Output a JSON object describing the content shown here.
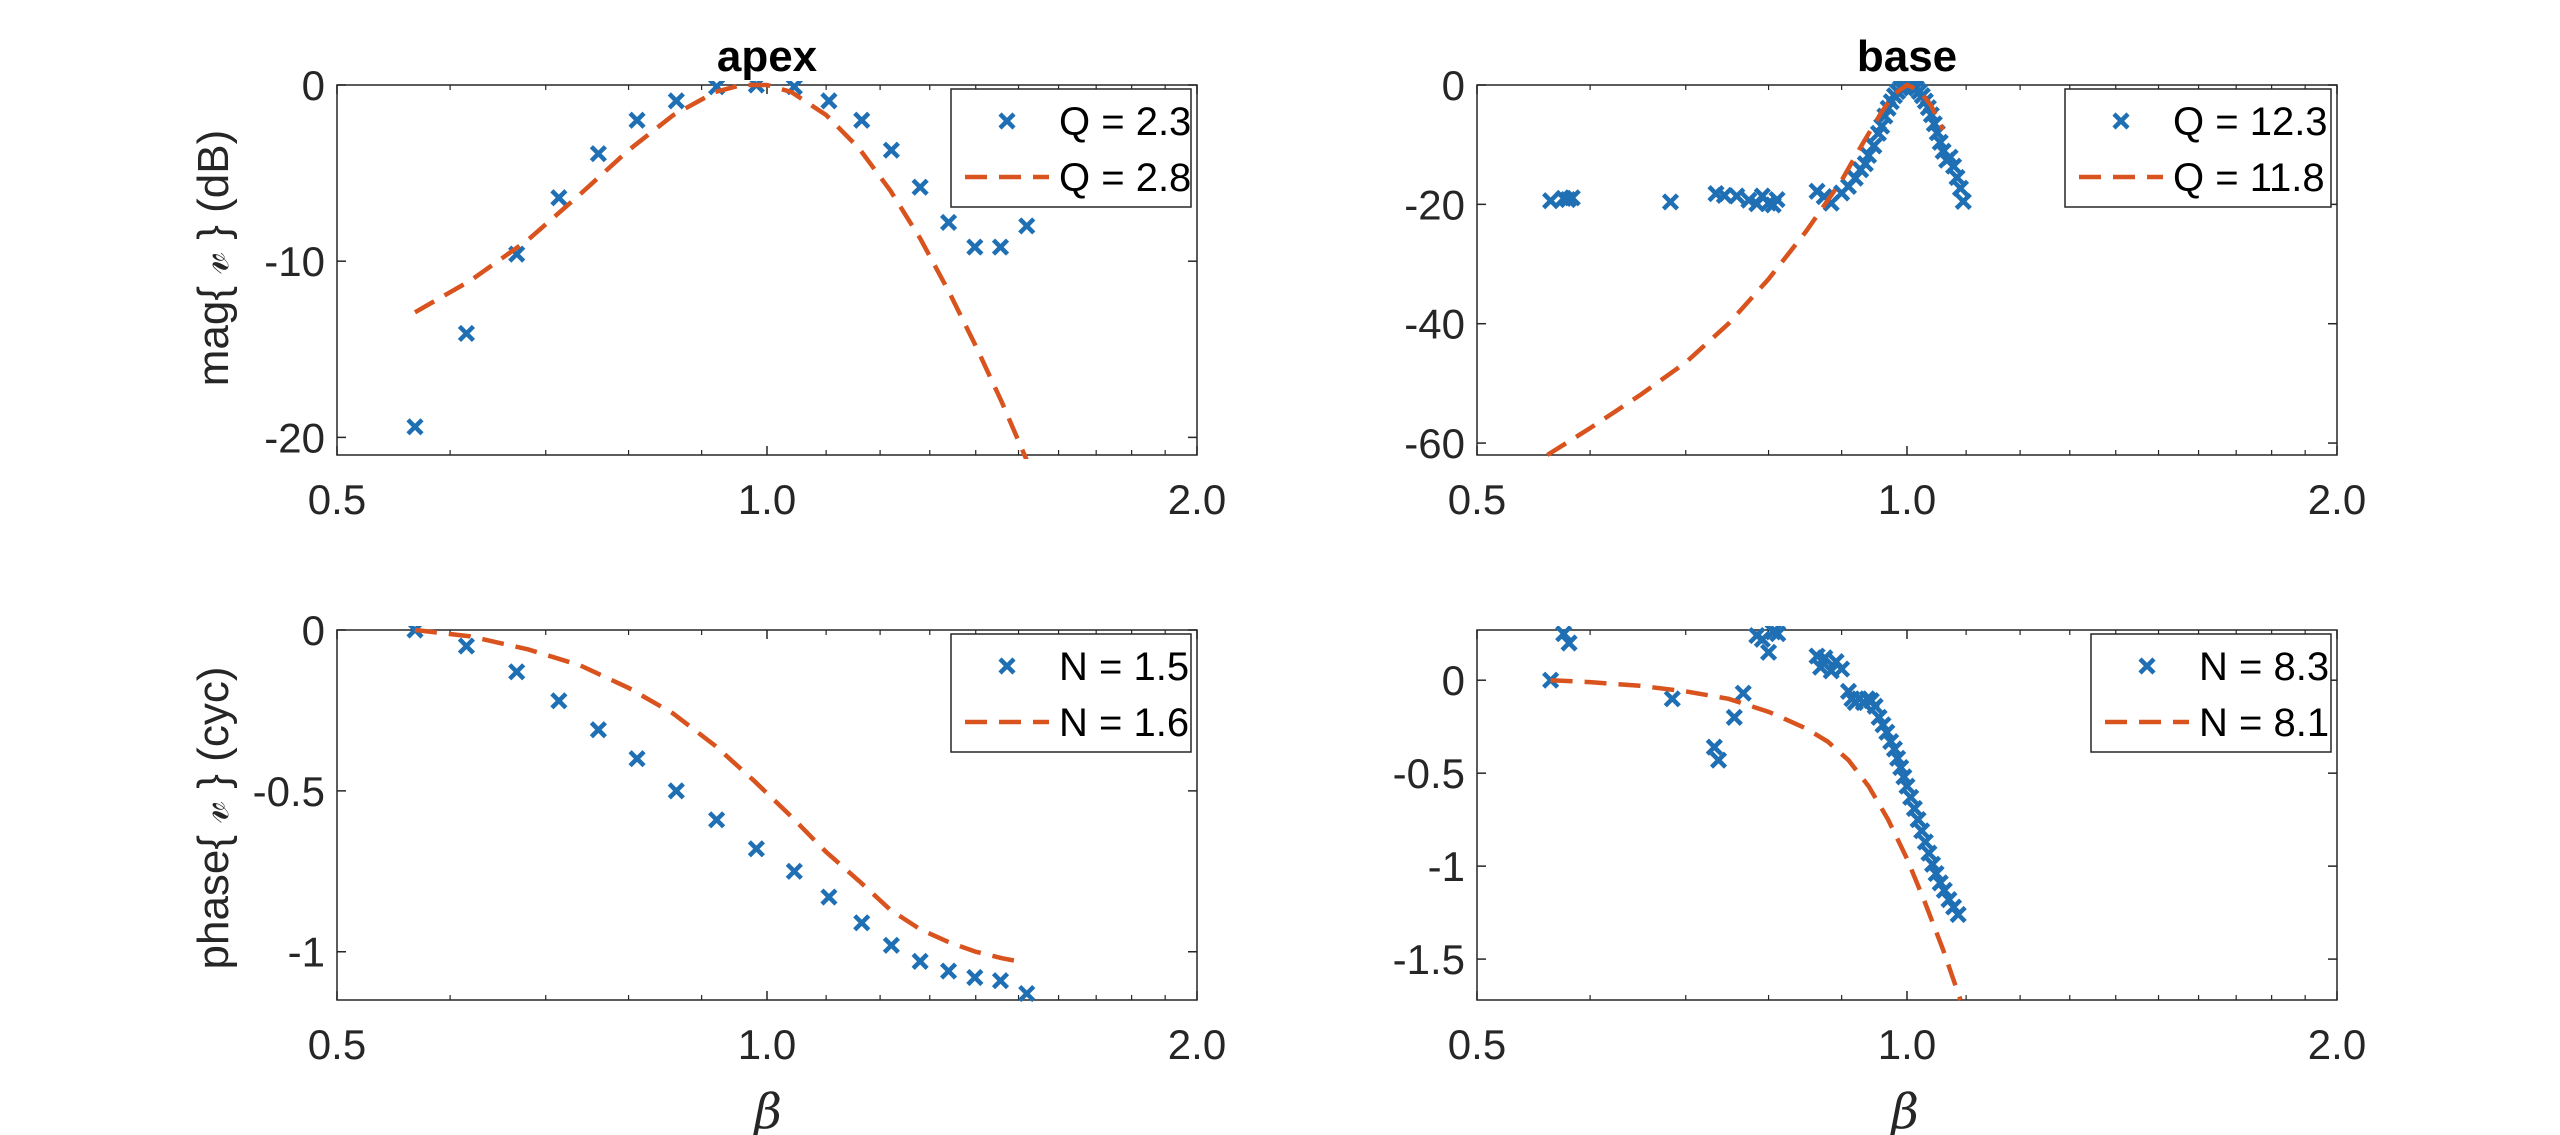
{
  "colors": {
    "marker": "#1f6fb4",
    "model": "#d9531e",
    "axis": "#262626",
    "background": "#ffffff"
  },
  "figure": {
    "xlabel": "β",
    "ylabel_top": "mag{ 𝓋 } (dB)",
    "ylabel_bottom": "phase{ 𝓋 }  (cyc)"
  },
  "chart_data": [
    {
      "id": "apex-mag",
      "type": "scatter",
      "title": "apex",
      "xscale": "log",
      "xlim": [
        0.5,
        2.0
      ],
      "ylim": [
        -21,
        0
      ],
      "xticks": [
        0.5,
        1.0,
        2.0
      ],
      "xticklabels": [
        "0.5",
        "1.0",
        "2.0"
      ],
      "yticks": [
        0,
        -10,
        -20
      ],
      "yticklabels": [
        "0",
        "-10",
        "-20"
      ],
      "legend_position": "top-right",
      "series": [
        {
          "name": "Q = 2.3",
          "kind": "markers",
          "points": [
            [
              0.567,
              -19.4
            ],
            [
              0.616,
              -14.1
            ],
            [
              0.668,
              -9.6
            ],
            [
              0.715,
              -6.4
            ],
            [
              0.762,
              -3.9
            ],
            [
              0.811,
              -2.0
            ],
            [
              0.864,
              -0.9
            ],
            [
              0.922,
              -0.1
            ],
            [
              0.983,
              0.0
            ],
            [
              1.045,
              -0.1
            ],
            [
              1.105,
              -0.9
            ],
            [
              1.165,
              -2.0
            ],
            [
              1.222,
              -3.7
            ],
            [
              1.28,
              -5.8
            ],
            [
              1.34,
              -7.8
            ],
            [
              1.398,
              -9.2
            ],
            [
              1.457,
              -9.2
            ],
            [
              1.52,
              -8.0
            ]
          ]
        },
        {
          "name": "Q = 2.8",
          "kind": "dashed-line",
          "points": [
            [
              0.567,
              -12.9
            ],
            [
              0.62,
              -11.1
            ],
            [
              0.68,
              -8.8
            ],
            [
              0.74,
              -6.2
            ],
            [
              0.8,
              -3.7
            ],
            [
              0.86,
              -1.7
            ],
            [
              0.92,
              -0.4
            ],
            [
              0.96,
              0.0
            ],
            [
              1.0,
              0.0
            ],
            [
              1.04,
              -0.4
            ],
            [
              1.1,
              -1.7
            ],
            [
              1.16,
              -3.6
            ],
            [
              1.22,
              -6.0
            ],
            [
              1.28,
              -8.7
            ],
            [
              1.34,
              -11.7
            ],
            [
              1.4,
              -14.8
            ],
            [
              1.46,
              -18.0
            ],
            [
              1.52,
              -21.3
            ]
          ]
        }
      ]
    },
    {
      "id": "base-mag",
      "type": "scatter",
      "title": "base",
      "xscale": "log",
      "xlim": [
        0.5,
        2.0
      ],
      "ylim": [
        -62,
        0
      ],
      "xticks": [
        0.5,
        1.0,
        2.0
      ],
      "xticklabels": [
        "0.5",
        "1.0",
        "2.0"
      ],
      "yticks": [
        0,
        -20,
        -40,
        -60
      ],
      "yticklabels": [
        "0",
        "-20",
        "-40",
        "-60"
      ],
      "legend_position": "top-right",
      "series": [
        {
          "name": "Q = 12.3",
          "kind": "markers",
          "points": [
            [
              0.563,
              -19.4
            ],
            [
              0.575,
              -19.0
            ],
            [
              0.579,
              -19.2
            ],
            [
              0.583,
              -18.9
            ],
            [
              0.683,
              -19.6
            ],
            [
              0.735,
              -18.2
            ],
            [
              0.745,
              -18.5
            ],
            [
              0.76,
              -18.6
            ],
            [
              0.775,
              -19.3
            ],
            [
              0.785,
              -19.9
            ],
            [
              0.792,
              -18.6
            ],
            [
              0.8,
              -19.8
            ],
            [
              0.806,
              -20.1
            ],
            [
              0.811,
              -19.2
            ],
            [
              0.865,
              -17.8
            ],
            [
              0.875,
              -18.7
            ],
            [
              0.885,
              -19.8
            ],
            [
              0.9,
              -18.1
            ],
            [
              0.91,
              -17.0
            ],
            [
              0.92,
              -15.6
            ],
            [
              0.928,
              -14.2
            ],
            [
              0.935,
              -13.2
            ],
            [
              0.94,
              -11.8
            ],
            [
              0.948,
              -10.2
            ],
            [
              0.955,
              -8.1
            ],
            [
              0.96,
              -6.9
            ],
            [
              0.965,
              -5.2
            ],
            [
              0.97,
              -3.9
            ],
            [
              0.975,
              -2.8
            ],
            [
              0.98,
              -1.8
            ],
            [
              0.985,
              -1.1
            ],
            [
              0.99,
              -0.5
            ],
            [
              0.995,
              -0.2
            ],
            [
              1.0,
              0.0
            ],
            [
              1.005,
              0.0
            ],
            [
              1.01,
              -0.2
            ],
            [
              1.015,
              -0.5
            ],
            [
              1.02,
              -1.1
            ],
            [
              1.025,
              -1.8
            ],
            [
              1.03,
              -2.7
            ],
            [
              1.035,
              -3.8
            ],
            [
              1.04,
              -5.0
            ],
            [
              1.045,
              -6.5
            ],
            [
              1.05,
              -8.0
            ],
            [
              1.055,
              -9.6
            ],
            [
              1.06,
              -11.1
            ],
            [
              1.066,
              -12.6
            ],
            [
              1.072,
              -12.1
            ],
            [
              1.078,
              -13.6
            ],
            [
              1.084,
              -15.5
            ],
            [
              1.09,
              -17.3
            ],
            [
              1.095,
              -19.5
            ]
          ]
        },
        {
          "name": "Q = 11.8",
          "kind": "dashed-line",
          "points": [
            [
              0.56,
              -62.0
            ],
            [
              0.6,
              -57.5
            ],
            [
              0.65,
              -52.0
            ],
            [
              0.7,
              -46.5
            ],
            [
              0.75,
              -40.0
            ],
            [
              0.8,
              -32.5
            ],
            [
              0.85,
              -24.5
            ],
            [
              0.9,
              -16.0
            ],
            [
              0.93,
              -10.0
            ],
            [
              0.96,
              -4.5
            ],
            [
              0.98,
              -1.5
            ],
            [
              1.0,
              0.0
            ],
            [
              1.02,
              -0.9
            ],
            [
              1.04,
              -3.5
            ],
            [
              1.06,
              -7.5
            ]
          ]
        }
      ]
    },
    {
      "id": "apex-phase",
      "type": "scatter",
      "xscale": "log",
      "xlim": [
        0.5,
        2.0
      ],
      "ylim": [
        -1.15,
        0
      ],
      "xticks": [
        0.5,
        1.0,
        2.0
      ],
      "xticklabels": [
        "0.5",
        "1.0",
        "2.0"
      ],
      "yticks": [
        0,
        -0.5,
        -1
      ],
      "yticklabels": [
        "0",
        "-0.5",
        "-1"
      ],
      "legend_position": "top-right",
      "series": [
        {
          "name": "N = 1.5",
          "kind": "markers",
          "points": [
            [
              0.567,
              0.0
            ],
            [
              0.616,
              -0.05
            ],
            [
              0.668,
              -0.13
            ],
            [
              0.715,
              -0.22
            ],
            [
              0.762,
              -0.31
            ],
            [
              0.811,
              -0.4
            ],
            [
              0.864,
              -0.5
            ],
            [
              0.922,
              -0.59
            ],
            [
              0.983,
              -0.68
            ],
            [
              1.045,
              -0.75
            ],
            [
              1.105,
              -0.83
            ],
            [
              1.165,
              -0.91
            ],
            [
              1.222,
              -0.98
            ],
            [
              1.28,
              -1.03
            ],
            [
              1.34,
              -1.06
            ],
            [
              1.398,
              -1.08
            ],
            [
              1.457,
              -1.09
            ],
            [
              1.52,
              -1.13
            ]
          ]
        },
        {
          "name": "N = 1.6",
          "kind": "dashed-line",
          "points": [
            [
              0.567,
              0.0
            ],
            [
              0.62,
              -0.02
            ],
            [
              0.68,
              -0.06
            ],
            [
              0.74,
              -0.11
            ],
            [
              0.8,
              -0.18
            ],
            [
              0.86,
              -0.26
            ],
            [
              0.92,
              -0.36
            ],
            [
              0.98,
              -0.47
            ],
            [
              1.04,
              -0.58
            ],
            [
              1.1,
              -0.69
            ],
            [
              1.16,
              -0.78
            ],
            [
              1.22,
              -0.87
            ],
            [
              1.28,
              -0.93
            ],
            [
              1.34,
              -0.97
            ],
            [
              1.4,
              -1.0
            ],
            [
              1.46,
              -1.02
            ],
            [
              1.5,
              -1.03
            ]
          ]
        }
      ]
    },
    {
      "id": "base-phase",
      "type": "scatter",
      "xscale": "log",
      "xlim": [
        0.5,
        2.0
      ],
      "ylim": [
        -1.72,
        0.27
      ],
      "xticks": [
        0.5,
        1.0,
        2.0
      ],
      "xticklabels": [
        "0.5",
        "1.0",
        "2.0"
      ],
      "yticks": [
        0,
        -0.5,
        -1,
        -1.5
      ],
      "yticklabels": [
        "0",
        "-0.5",
        "-1",
        "-1.5"
      ],
      "legend_position": "top-right",
      "series": [
        {
          "name": "N = 8.3",
          "kind": "markers",
          "points": [
            [
              0.563,
              0.0
            ],
            [
              0.575,
              0.25
            ],
            [
              0.58,
              0.2
            ],
            [
              0.685,
              -0.1
            ],
            [
              0.733,
              -0.36
            ],
            [
              0.738,
              -0.43
            ],
            [
              0.757,
              -0.2
            ],
            [
              0.768,
              -0.07
            ],
            [
              0.785,
              0.24
            ],
            [
              0.792,
              0.22
            ],
            [
              0.8,
              0.15
            ],
            [
              0.806,
              0.26
            ],
            [
              0.812,
              0.25
            ],
            [
              0.865,
              0.13
            ],
            [
              0.87,
              0.07
            ],
            [
              0.876,
              0.12
            ],
            [
              0.885,
              0.05
            ],
            [
              0.892,
              0.1
            ],
            [
              0.9,
              0.06
            ],
            [
              0.91,
              -0.06
            ],
            [
              0.915,
              -0.1
            ],
            [
              0.92,
              -0.12
            ],
            [
              0.926,
              -0.1
            ],
            [
              0.932,
              -0.12
            ],
            [
              0.938,
              -0.1
            ],
            [
              0.944,
              -0.11
            ],
            [
              0.95,
              -0.14
            ],
            [
              0.956,
              -0.2
            ],
            [
              0.962,
              -0.24
            ],
            [
              0.968,
              -0.28
            ],
            [
              0.974,
              -0.33
            ],
            [
              0.98,
              -0.37
            ],
            [
              0.985,
              -0.42
            ],
            [
              0.99,
              -0.47
            ],
            [
              0.995,
              -0.52
            ],
            [
              1.0,
              -0.57
            ],
            [
              1.006,
              -0.63
            ],
            [
              1.012,
              -0.69
            ],
            [
              1.018,
              -0.75
            ],
            [
              1.024,
              -0.81
            ],
            [
              1.03,
              -0.87
            ],
            [
              1.036,
              -0.93
            ],
            [
              1.042,
              -0.99
            ],
            [
              1.048,
              -1.04
            ],
            [
              1.055,
              -1.09
            ],
            [
              1.062,
              -1.13
            ],
            [
              1.07,
              -1.18
            ],
            [
              1.078,
              -1.22
            ],
            [
              1.086,
              -1.26
            ]
          ]
        },
        {
          "name": "N = 8.1",
          "kind": "dashed-line",
          "points": [
            [
              0.563,
              0.0
            ],
            [
              0.6,
              -0.01
            ],
            [
              0.65,
              -0.03
            ],
            [
              0.7,
              -0.06
            ],
            [
              0.75,
              -0.1
            ],
            [
              0.8,
              -0.17
            ],
            [
              0.85,
              -0.26
            ],
            [
              0.88,
              -0.33
            ],
            [
              0.91,
              -0.43
            ],
            [
              0.94,
              -0.57
            ],
            [
              0.97,
              -0.75
            ],
            [
              1.0,
              -0.96
            ],
            [
              1.03,
              -1.2
            ],
            [
              1.06,
              -1.45
            ],
            [
              1.09,
              -1.72
            ]
          ]
        }
      ]
    }
  ]
}
